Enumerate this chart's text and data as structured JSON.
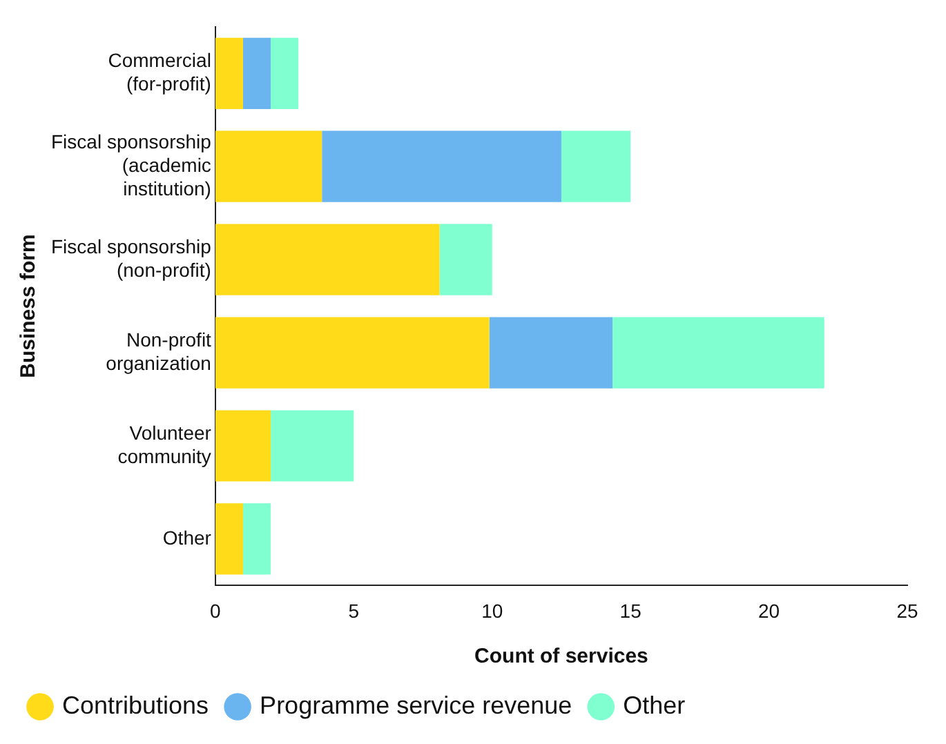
{
  "chart_data": {
    "type": "bar",
    "orientation": "horizontal",
    "stacked": true,
    "xlabel": "Count of services",
    "ylabel": "Business form",
    "categories": [
      "Commercial (for-profit)",
      "Fiscal sponsorship (academic institution)",
      "Fiscal sponsorship (non-profit)",
      "Non-profit organization",
      "Volunteer community",
      "Other"
    ],
    "series": [
      {
        "name": "Contributions",
        "color": "#ffdb19",
        "values": [
          1,
          3.85,
          8.1,
          9.9,
          2,
          1
        ]
      },
      {
        "name": "Programme service revenue",
        "color": "#6ab4f0",
        "values": [
          1,
          8.65,
          0,
          4.45,
          0,
          0
        ]
      },
      {
        "name": "Other",
        "color": "#80ffd0",
        "values": [
          1,
          2.5,
          1.9,
          7.65,
          3,
          1
        ]
      }
    ],
    "xlim": [
      0,
      25
    ],
    "xticks": [
      0,
      5,
      10,
      15,
      20,
      25
    ],
    "grid": false,
    "legend": "bottom"
  }
}
